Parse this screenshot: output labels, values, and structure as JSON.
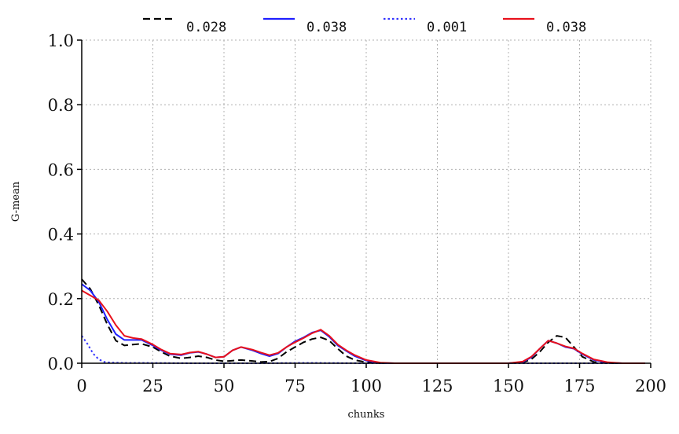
{
  "chart_data": {
    "type": "line",
    "title": "",
    "xlabel": "chunks",
    "ylabel": "G-mean",
    "xlim": [
      0,
      200
    ],
    "ylim": [
      0,
      1.0
    ],
    "xticks": [
      0,
      25,
      50,
      75,
      100,
      125,
      150,
      175,
      200
    ],
    "yticks": [
      "0.0",
      "0.2",
      "0.4",
      "0.6",
      "0.8",
      "1.0"
    ],
    "grid": true,
    "legend_position": "top",
    "series": [
      {
        "name": "0.028",
        "color": "#000000",
        "style": "dashed",
        "points": [
          [
            0,
            0.26
          ],
          [
            3,
            0.23
          ],
          [
            6,
            0.18
          ],
          [
            9,
            0.12
          ],
          [
            12,
            0.07
          ],
          [
            15,
            0.055
          ],
          [
            18,
            0.058
          ],
          [
            21,
            0.06
          ],
          [
            25,
            0.05
          ],
          [
            28,
            0.035
          ],
          [
            31,
            0.022
          ],
          [
            35,
            0.015
          ],
          [
            38,
            0.018
          ],
          [
            41,
            0.022
          ],
          [
            44,
            0.018
          ],
          [
            47,
            0.01
          ],
          [
            50,
            0.006
          ],
          [
            53,
            0.008
          ],
          [
            56,
            0.01
          ],
          [
            60,
            0.007
          ],
          [
            63,
            0.004
          ],
          [
            66,
            0.005
          ],
          [
            69,
            0.015
          ],
          [
            72,
            0.035
          ],
          [
            75,
            0.05
          ],
          [
            78,
            0.065
          ],
          [
            81,
            0.075
          ],
          [
            84,
            0.08
          ],
          [
            87,
            0.07
          ],
          [
            90,
            0.045
          ],
          [
            93,
            0.022
          ],
          [
            96,
            0.01
          ],
          [
            100,
            0.003
          ],
          [
            105,
            0.0
          ],
          [
            110,
            0.0
          ],
          [
            120,
            0.0
          ],
          [
            130,
            0.0
          ],
          [
            140,
            0.0
          ],
          [
            150,
            0.0
          ],
          [
            155,
            0.002
          ],
          [
            158,
            0.012
          ],
          [
            161,
            0.035
          ],
          [
            164,
            0.065
          ],
          [
            167,
            0.085
          ],
          [
            170,
            0.08
          ],
          [
            173,
            0.05
          ],
          [
            176,
            0.02
          ],
          [
            180,
            0.004
          ],
          [
            185,
            0.0
          ],
          [
            190,
            0.0
          ],
          [
            198,
            0.0
          ]
        ]
      },
      {
        "name": "0.038",
        "color": "#1f1fff",
        "style": "solid",
        "points": [
          [
            0,
            0.245
          ],
          [
            3,
            0.225
          ],
          [
            6,
            0.19
          ],
          [
            9,
            0.135
          ],
          [
            12,
            0.09
          ],
          [
            15,
            0.072
          ],
          [
            18,
            0.072
          ],
          [
            21,
            0.072
          ],
          [
            25,
            0.055
          ],
          [
            28,
            0.04
          ],
          [
            31,
            0.028
          ],
          [
            35,
            0.025
          ],
          [
            38,
            0.032
          ],
          [
            41,
            0.035
          ],
          [
            44,
            0.028
          ],
          [
            47,
            0.018
          ],
          [
            50,
            0.02
          ],
          [
            53,
            0.04
          ],
          [
            56,
            0.05
          ],
          [
            60,
            0.04
          ],
          [
            63,
            0.03
          ],
          [
            66,
            0.022
          ],
          [
            69,
            0.03
          ],
          [
            72,
            0.05
          ],
          [
            75,
            0.068
          ],
          [
            78,
            0.08
          ],
          [
            81,
            0.095
          ],
          [
            84,
            0.102
          ],
          [
            87,
            0.082
          ],
          [
            90,
            0.055
          ],
          [
            93,
            0.038
          ],
          [
            96,
            0.022
          ],
          [
            100,
            0.008
          ],
          [
            105,
            0.001
          ],
          [
            110,
            0.0
          ],
          [
            120,
            0.0
          ],
          [
            130,
            0.0
          ],
          [
            140,
            0.0
          ],
          [
            150,
            0.0
          ],
          [
            155,
            0.004
          ],
          [
            158,
            0.018
          ],
          [
            161,
            0.045
          ],
          [
            164,
            0.07
          ],
          [
            167,
            0.062
          ],
          [
            170,
            0.05
          ],
          [
            173,
            0.045
          ],
          [
            176,
            0.028
          ],
          [
            180,
            0.01
          ],
          [
            185,
            0.002
          ],
          [
            190,
            0.0
          ],
          [
            198,
            0.0
          ]
        ]
      },
      {
        "name": "0.001",
        "color": "#3333ff",
        "style": "dotted",
        "points": [
          [
            0,
            0.085
          ],
          [
            2,
            0.06
          ],
          [
            4,
            0.03
          ],
          [
            6,
            0.012
          ],
          [
            8,
            0.004
          ],
          [
            10,
            0.002
          ],
          [
            15,
            0.001
          ],
          [
            20,
            0.001
          ],
          [
            40,
            0.0
          ],
          [
            60,
            0.0
          ],
          [
            80,
            0.001
          ],
          [
            100,
            0.0
          ],
          [
            120,
            0.0
          ],
          [
            140,
            0.0
          ],
          [
            160,
            0.0
          ],
          [
            180,
            0.0
          ],
          [
            198,
            0.0
          ]
        ]
      },
      {
        "name": "0.038",
        "color": "#e8111c",
        "style": "solid",
        "points": [
          [
            0,
            0.225
          ],
          [
            3,
            0.21
          ],
          [
            6,
            0.195
          ],
          [
            9,
            0.16
          ],
          [
            12,
            0.118
          ],
          [
            15,
            0.085
          ],
          [
            18,
            0.078
          ],
          [
            21,
            0.075
          ],
          [
            25,
            0.058
          ],
          [
            28,
            0.042
          ],
          [
            31,
            0.03
          ],
          [
            35,
            0.027
          ],
          [
            38,
            0.033
          ],
          [
            41,
            0.036
          ],
          [
            44,
            0.028
          ],
          [
            47,
            0.018
          ],
          [
            50,
            0.02
          ],
          [
            53,
            0.04
          ],
          [
            56,
            0.05
          ],
          [
            60,
            0.042
          ],
          [
            63,
            0.033
          ],
          [
            66,
            0.025
          ],
          [
            69,
            0.032
          ],
          [
            72,
            0.05
          ],
          [
            75,
            0.065
          ],
          [
            78,
            0.078
          ],
          [
            81,
            0.093
          ],
          [
            84,
            0.104
          ],
          [
            87,
            0.085
          ],
          [
            90,
            0.058
          ],
          [
            93,
            0.04
          ],
          [
            96,
            0.025
          ],
          [
            100,
            0.01
          ],
          [
            105,
            0.002
          ],
          [
            110,
            0.0
          ],
          [
            120,
            0.0
          ],
          [
            130,
            0.0
          ],
          [
            140,
            0.0
          ],
          [
            150,
            0.0
          ],
          [
            155,
            0.005
          ],
          [
            158,
            0.02
          ],
          [
            161,
            0.045
          ],
          [
            164,
            0.07
          ],
          [
            167,
            0.062
          ],
          [
            170,
            0.052
          ],
          [
            173,
            0.046
          ],
          [
            176,
            0.03
          ],
          [
            180,
            0.012
          ],
          [
            185,
            0.003
          ],
          [
            190,
            0.0
          ],
          [
            198,
            0.0
          ]
        ]
      }
    ]
  }
}
